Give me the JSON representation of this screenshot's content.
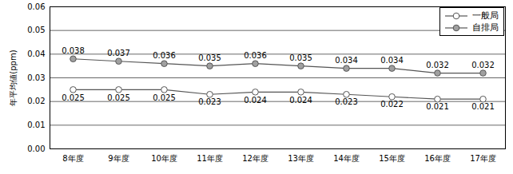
{
  "chart_data": {
    "type": "line",
    "y_label": "年平均値(ppm)",
    "categories": [
      "8年度",
      "9年度",
      "10年度",
      "11年度",
      "12年度",
      "13年度",
      "14年度",
      "15年度",
      "16年度",
      "17年度"
    ],
    "series": [
      {
        "name": "一般局",
        "color": "#ffffff",
        "marker": "circle",
        "values": [
          0.025,
          0.025,
          0.025,
          0.023,
          0.024,
          0.024,
          0.023,
          0.022,
          0.021,
          0.021
        ]
      },
      {
        "name": "自排局",
        "color": "#a0a0a0",
        "marker": "circle",
        "values": [
          0.038,
          0.037,
          0.036,
          0.035,
          0.036,
          0.035,
          0.034,
          0.034,
          0.032,
          0.032
        ]
      }
    ],
    "ylim": [
      0,
      0.06
    ],
    "yticks": [
      {
        "value": 0,
        "label": "0.00"
      },
      {
        "value": 0.01,
        "label": "0.01"
      },
      {
        "value": 0.02,
        "label": "0.02"
      },
      {
        "value": 0.03,
        "label": "0.03"
      },
      {
        "value": 0.04,
        "label": "0.04"
      },
      {
        "value": 0.05,
        "label": "0.05"
      },
      {
        "value": 0.06,
        "label": "0.06"
      }
    ],
    "grid": true,
    "data_labels": true,
    "legend": "upper right"
  }
}
